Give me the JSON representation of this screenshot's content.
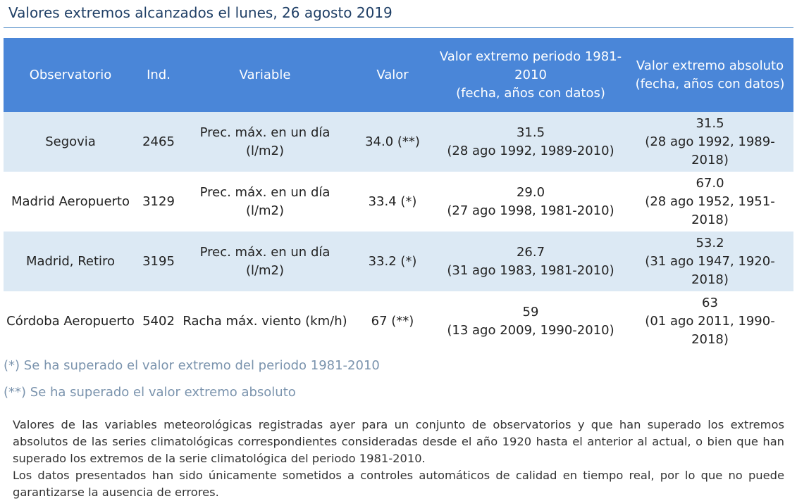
{
  "title": "Valores extremos alcanzados el lunes, 26 agosto 2019",
  "table": {
    "headers": {
      "observatorio": "Observatorio",
      "ind": "Ind.",
      "variable": "Variable",
      "valor": "Valor",
      "periodo_line1": "Valor extremo periodo 1981-2010",
      "periodo_line2": "(fecha, años con datos)",
      "absoluto_line1": "Valor extremo absoluto",
      "absoluto_line2": "(fecha, años con datos)"
    },
    "rows": [
      {
        "observatorio": "Segovia",
        "ind": "2465",
        "variable": "Prec. máx. en un día (l/m2)",
        "valor": "34.0 (**)",
        "periodo_value": "31.5",
        "periodo_detail": "(28 ago 1992, 1989-2010)",
        "absoluto_value": "31.5",
        "absoluto_detail": "(28 ago 1992, 1989-2018)"
      },
      {
        "observatorio": "Madrid Aeropuerto",
        "ind": "3129",
        "variable": "Prec. máx. en un día (l/m2)",
        "valor": "33.4 (*)",
        "periodo_value": "29.0",
        "periodo_detail": "(27 ago 1998, 1981-2010)",
        "absoluto_value": "67.0",
        "absoluto_detail": "(28 ago 1952, 1951-2018)"
      },
      {
        "observatorio": "Madrid, Retiro",
        "ind": "3195",
        "variable": "Prec. máx. en un día (l/m2)",
        "valor": "33.2 (*)",
        "periodo_value": "26.7",
        "periodo_detail": "(31 ago 1983, 1981-2010)",
        "absoluto_value": "53.2",
        "absoluto_detail": "(31 ago 1947, 1920-2018)"
      },
      {
        "observatorio": "Córdoba Aeropuerto",
        "ind": "5402",
        "variable": "Racha máx. viento (km/h)",
        "valor": "67 (**)",
        "periodo_value": "59",
        "periodo_detail": "(13 ago 2009, 1990-2010)",
        "absoluto_value": "63",
        "absoluto_detail": "(01 ago 2011, 1990-2018)"
      }
    ]
  },
  "notes": {
    "note1": "(*) Se ha superado el valor extremo del periodo 1981-2010",
    "note2": "(**) Se ha superado el valor extremo absoluto"
  },
  "description": {
    "paragraph1": "Valores de las variables meteorológicas registradas ayer para un conjunto de observatorios y que han superado los extremos absolutos de las series climatológicas correspondientes consideradas desde el año 1920 hasta el anterior al actual, o bien que han superado los extremos de la serie climatológica del periodo 1981-2010.",
    "paragraph2": "Los datos presentados han sido únicamente sometidos a controles automáticos de calidad en tiempo real, por lo que no puede garantizarse la ausencia de errores."
  },
  "colors": {
    "header_bg": "#4a86d8",
    "row_alt_bg": "#dce9f4",
    "title_color": "#1f3f66",
    "note_color": "#7a93ad"
  }
}
